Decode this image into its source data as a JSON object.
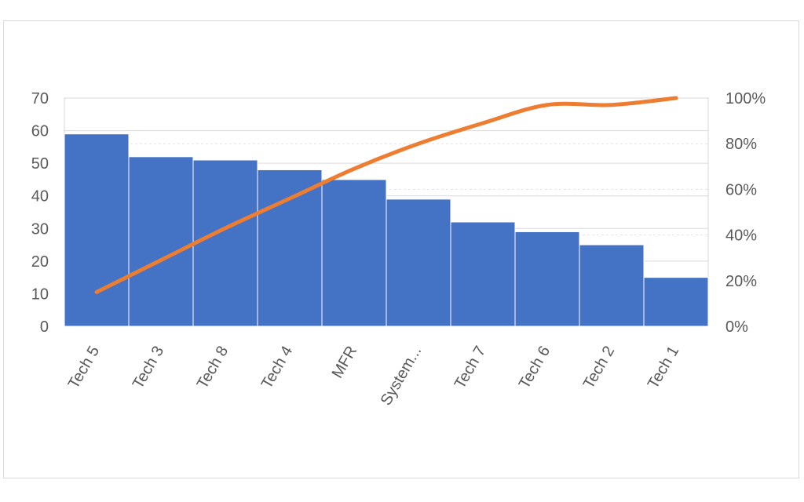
{
  "chart_data": {
    "type": "bar",
    "categories": [
      "Tech 5",
      "Tech 3",
      "Tech 8",
      "Tech 4",
      "MFR",
      "System...",
      "Tech 7",
      "Tech 6",
      "Tech 2",
      "Tech 1"
    ],
    "series": [
      {
        "type": "bar",
        "color": "#4472C4",
        "axis": "left",
        "values": [
          59,
          52,
          51,
          48,
          45,
          39,
          32,
          29,
          25,
          15
        ]
      },
      {
        "type": "line",
        "color": "#ED7D31",
        "axis": "right",
        "values": [
          15,
          29,
          43,
          56,
          69,
          80,
          89,
          97,
          97,
          100
        ]
      }
    ],
    "ylim": [
      0,
      70
    ],
    "yticks": [
      0,
      10,
      20,
      30,
      40,
      50,
      60,
      70
    ],
    "y2lim": [
      0,
      100
    ],
    "y2ticks": [
      "0%",
      "20%",
      "40%",
      "60%",
      "80%",
      "100%"
    ],
    "grid": true,
    "legend": "none"
  }
}
